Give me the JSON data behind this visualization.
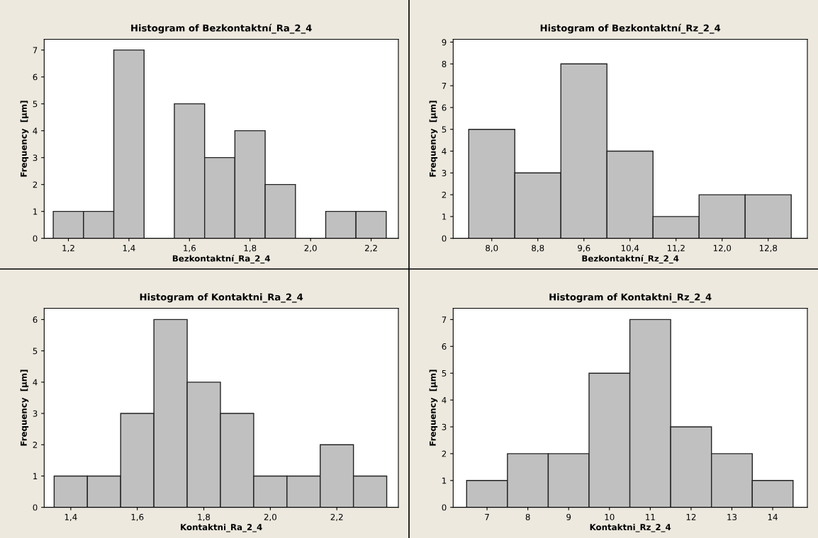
{
  "chart_data": [
    {
      "type": "histogram",
      "title": "Histogram of Bezkontaktní_Ra_2_4",
      "xlabel": "Bezkontaktní_Ra_2_4",
      "ylabel": "Frequency  [µm]",
      "color": "#c0c0c0",
      "bins": [
        1.15,
        1.25,
        1.35,
        1.45,
        1.55,
        1.65,
        1.75,
        1.85,
        1.95,
        2.05,
        2.15,
        2.25
      ],
      "values": [
        1,
        1,
        7,
        0,
        5,
        3,
        4,
        2,
        0,
        1,
        1
      ],
      "xlim": [
        1.12,
        2.29
      ],
      "xticks": [
        {
          "value": 1.2,
          "label": "1,2"
        },
        {
          "value": 1.4,
          "label": "1,4"
        },
        {
          "value": 1.6,
          "label": "1,6"
        },
        {
          "value": 1.8,
          "label": "1,8"
        },
        {
          "value": 2.0,
          "label": "2,0"
        },
        {
          "value": 2.2,
          "label": "2,2"
        }
      ],
      "ylim": [
        0,
        7.4
      ],
      "yticks": [
        0,
        1,
        2,
        3,
        4,
        5,
        6,
        7
      ],
      "grid": false
    },
    {
      "type": "histogram",
      "title": "Histogram of Bezkontaktní_Rz_2_4",
      "xlabel": "Bezkontaktní_Rz_2_4",
      "ylabel": "Frequency  [µm]",
      "color": "#c0c0c0",
      "bins": [
        7.6,
        8.4,
        9.2,
        10.0,
        10.8,
        11.6,
        12.4,
        13.2
      ],
      "values": [
        5,
        3,
        8,
        4,
        1,
        2,
        2
      ],
      "xlim": [
        7.33,
        13.48
      ],
      "xticks": [
        {
          "value": 8.0,
          "label": "8,0"
        },
        {
          "value": 8.8,
          "label": "8,8"
        },
        {
          "value": 9.6,
          "label": "9,6"
        },
        {
          "value": 10.4,
          "label": "10,4"
        },
        {
          "value": 11.2,
          "label": "11,2"
        },
        {
          "value": 12.0,
          "label": "12,0"
        },
        {
          "value": 12.8,
          "label": "12,8"
        }
      ],
      "ylim": [
        0,
        9.13
      ],
      "yticks": [
        0,
        1,
        2,
        3,
        4,
        5,
        6,
        7,
        8,
        9
      ],
      "grid": false
    },
    {
      "type": "histogram",
      "title": "Histogram of Kontaktni_Ra_2_4",
      "xlabel": "Kontaktni_Ra_2_4",
      "ylabel": "Frequency  [µm]",
      "color": "#c0c0c0",
      "bins": [
        1.35,
        1.45,
        1.55,
        1.65,
        1.75,
        1.85,
        1.95,
        2.05,
        2.15,
        2.25,
        2.35
      ],
      "values": [
        1,
        1,
        3,
        6,
        4,
        3,
        1,
        1,
        2,
        1
      ],
      "xlim": [
        1.32,
        2.385
      ],
      "xticks": [
        {
          "value": 1.4,
          "label": "1,4"
        },
        {
          "value": 1.6,
          "label": "1,6"
        },
        {
          "value": 1.8,
          "label": "1,8"
        },
        {
          "value": 2.0,
          "label": "2,0"
        },
        {
          "value": 2.2,
          "label": "2,2"
        }
      ],
      "ylim": [
        0,
        6.36
      ],
      "yticks": [
        0,
        1,
        2,
        3,
        4,
        5,
        6
      ],
      "grid": false
    },
    {
      "type": "histogram",
      "title": "Histogram of Kontaktni_Rz_2_4",
      "xlabel": "Kontaktni_Rz_2_4",
      "ylabel": "Frequency  [µm]",
      "color": "#c0c0c0",
      "bins": [
        6.5,
        7.5,
        8.5,
        9.5,
        10.5,
        11.5,
        12.5,
        13.5,
        14.5
      ],
      "values": [
        1,
        2,
        2,
        5,
        7,
        3,
        2,
        1
      ],
      "xlim": [
        6.17,
        14.85
      ],
      "xticks": [
        7,
        8,
        9,
        10,
        11,
        12,
        13,
        14
      ],
      "ylim": [
        0,
        7.42
      ],
      "yticks": [
        0,
        1,
        2,
        3,
        4,
        5,
        6,
        7
      ],
      "grid": false
    }
  ]
}
